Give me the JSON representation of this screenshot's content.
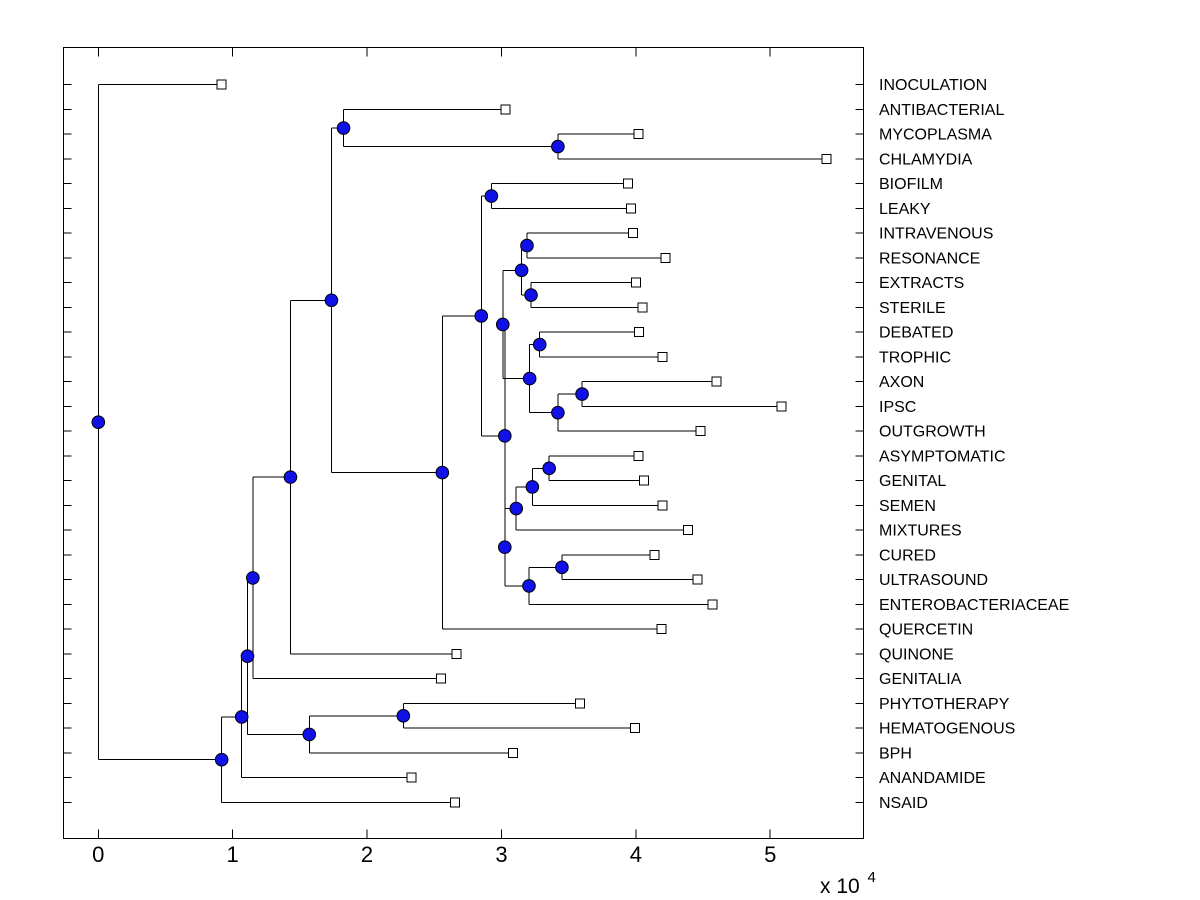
{
  "style": {
    "background": "#ffffff",
    "line_color": "#000000",
    "text_color": "#000000",
    "node_marker_color": "#1010e8",
    "node_marker_edge": "#000000",
    "leaf_marker_fill": "#ffffff",
    "leaf_marker_edge": "#000000"
  },
  "chart_data": {
    "type": "dendrogram",
    "title": "",
    "xlabel": "",
    "ylabel": "",
    "orientation": "left-to-right",
    "grid": false,
    "legend": false,
    "n_leaves": 30,
    "x_axis": {
      "ticks": [
        0,
        1,
        2,
        3,
        4,
        5
      ],
      "tick_labels": [
        "0",
        "1",
        "2",
        "3",
        "4",
        "5"
      ],
      "multiplier_base": "x 10",
      "multiplier_exponent": "4",
      "xlim": [
        0,
        56900
      ],
      "units_note": "branch distance from root, shown in units of 1e4"
    },
    "leaf_labels_in_order": [
      "INOCULATION",
      "ANTIBACTERIAL",
      "MYCOPLASMA",
      "CHLAMYDIA",
      "BIOFILM",
      "LEAKY",
      "INTRAVENOUS",
      "RESONANCE",
      "EXTRACTS",
      "STERILE",
      "DEBATED",
      "TROPHIC",
      "AXON",
      "IPSC",
      "OUTGROWTH",
      "ASYMPTOMATIC",
      "GENITAL",
      "SEMEN",
      "MIXTURES",
      "CURED",
      "ULTRASOUND",
      "ENTEROBACTERIACEAE",
      "QUERCETIN",
      "QUINONE",
      "GENITALIA",
      "PHYTOTHERAPY",
      "HEMATOGENOUS",
      "BPH",
      "ANANDAMIDE",
      "NSAID"
    ],
    "tree": {
      "id": "root",
      "x": 0,
      "children": [
        {
          "id": "leaf-inoculation",
          "label": "INOCULATION",
          "x": 9150
        },
        {
          "id": "n-222",
          "x": 9180,
          "children": [
            {
              "id": "n-242",
              "x": 10670,
              "children": [
                {
                  "id": "n-247",
                  "x": 11100,
                  "children": [
                    {
                      "id": "n-252",
                      "x": 11500,
                      "children": [
                        {
                          "id": "n-289",
                          "x": 14300,
                          "children": [
                            {
                              "id": "n-top",
                              "x": 17350,
                              "children": [
                                {
                                  "id": "n-a",
                                  "x": 18250,
                                  "children": [
                                    {
                                      "id": "leaf-antibacterial",
                                      "label": "ANTIBACTERIAL",
                                      "x": 30300
                                    },
                                    {
                                      "id": "n-b",
                                      "x": 34200,
                                      "children": [
                                        {
                                          "id": "leaf-mycoplasma",
                                          "label": "MYCOPLASMA",
                                          "x": 40200
                                        },
                                        {
                                          "id": "leaf-chlamydia",
                                          "label": "CHLAMYDIA",
                                          "x": 54200
                                        }
                                      ]
                                    }
                                  ]
                                },
                                {
                                  "id": "n-bq",
                                  "x": 25600,
                                  "children": [
                                    {
                                      "id": "n-x",
                                      "x": 28500,
                                      "children": [
                                        {
                                          "id": "n-bl",
                                          "x": 29250,
                                          "children": [
                                            {
                                              "id": "leaf-biofilm",
                                              "label": "BIOFILM",
                                              "x": 39400
                                            },
                                            {
                                              "id": "leaf-leaky",
                                              "label": "LEAKY",
                                              "x": 39650
                                            }
                                          ]
                                        },
                                        {
                                          "id": "n-y",
                                          "x": 30250,
                                          "children": [
                                            {
                                              "id": "n-mid",
                                              "x": 30100,
                                              "children": [
                                                {
                                                  "id": "n-ires",
                                                  "x": 31500,
                                                  "children": [
                                                    {
                                                      "id": "n-ir",
                                                      "x": 31900,
                                                      "children": [
                                                        {
                                                          "id": "leaf-intravenous",
                                                          "label": "INTRAVENOUS",
                                                          "x": 39800
                                                        },
                                                        {
                                                          "id": "leaf-resonance",
                                                          "label": "RESONANCE",
                                                          "x": 42200
                                                        }
                                                      ]
                                                    },
                                                    {
                                                      "id": "n-es",
                                                      "x": 32200,
                                                      "children": [
                                                        {
                                                          "id": "leaf-extracts",
                                                          "label": "EXTRACTS",
                                                          "x": 40000
                                                        },
                                                        {
                                                          "id": "leaf-sterile",
                                                          "label": "STERILE",
                                                          "x": 40500
                                                        }
                                                      ]
                                                    }
                                                  ]
                                                },
                                                {
                                                  "id": "n-dtaio",
                                                  "x": 32100,
                                                  "children": [
                                                    {
                                                      "id": "n-dt",
                                                      "x": 32850,
                                                      "children": [
                                                        {
                                                          "id": "leaf-debated",
                                                          "label": "DEBATED",
                                                          "x": 40250
                                                        },
                                                        {
                                                          "id": "leaf-trophic",
                                                          "label": "TROPHIC",
                                                          "x": 42000
                                                        }
                                                      ]
                                                    },
                                                    {
                                                      "id": "n-aio",
                                                      "x": 34200,
                                                      "children": [
                                                        {
                                                          "id": "n-ai",
                                                          "x": 36000,
                                                          "children": [
                                                            {
                                                              "id": "leaf-axon",
                                                              "label": "AXON",
                                                              "x": 46000
                                                            },
                                                            {
                                                              "id": "leaf-ipsc",
                                                              "label": "IPSC",
                                                              "x": 50850
                                                            }
                                                          ]
                                                        },
                                                        {
                                                          "id": "leaf-outgrowth",
                                                          "label": "OUTGROWTH",
                                                          "x": 44800
                                                        }
                                                      ]
                                                    }
                                                  ]
                                                }
                                              ]
                                            },
                                            {
                                              "id": "n-z",
                                              "x": 30250,
                                              "children": [
                                                {
                                                  "id": "n-asm",
                                                  "x": 31100,
                                                  "children": [
                                                    {
                                                      "id": "n-ags",
                                                      "x": 32300,
                                                      "children": [
                                                        {
                                                          "id": "n-ag",
                                                          "x": 33550,
                                                          "children": [
                                                            {
                                                              "id": "leaf-asymptomatic",
                                                              "label": "ASYMPTOMATIC",
                                                              "x": 40200
                                                            },
                                                            {
                                                              "id": "leaf-genital",
                                                              "label": "GENITAL",
                                                              "x": 40600
                                                            }
                                                          ]
                                                        },
                                                        {
                                                          "id": "leaf-semen",
                                                          "label": "SEMEN",
                                                          "x": 42000
                                                        }
                                                      ]
                                                    },
                                                    {
                                                      "id": "leaf-mixtures",
                                                      "label": "MIXTURES",
                                                      "x": 43900
                                                    }
                                                  ]
                                                },
                                                {
                                                  "id": "n-cue",
                                                  "x": 32050,
                                                  "children": [
                                                    {
                                                      "id": "n-cu",
                                                      "x": 34500,
                                                      "children": [
                                                        {
                                                          "id": "leaf-cured",
                                                          "label": "CURED",
                                                          "x": 41400
                                                        },
                                                        {
                                                          "id": "leaf-ultrasound",
                                                          "label": "ULTRASOUND",
                                                          "x": 44600
                                                        }
                                                      ]
                                                    },
                                                    {
                                                      "id": "leaf-enterobacteriaceae",
                                                      "label": "ENTEROBACTERIACEAE",
                                                      "x": 45700
                                                    }
                                                  ]
                                                }
                                              ]
                                            }
                                          ]
                                        }
                                      ]
                                    },
                                    {
                                      "id": "leaf-quercetin",
                                      "label": "QUERCETIN",
                                      "x": 41900
                                    }
                                  ]
                                }
                              ]
                            },
                            {
                              "id": "leaf-quinone",
                              "label": "QUINONE",
                              "x": 26650
                            }
                          ]
                        },
                        {
                          "id": "leaf-genitalia",
                          "label": "GENITALIA",
                          "x": 25500
                        }
                      ]
                    },
                    {
                      "id": "n-ph",
                      "x": 15700,
                      "children": [
                        {
                          "id": "n-phhe",
                          "x": 22700,
                          "children": [
                            {
                              "id": "leaf-phytotherapy",
                              "label": "PHYTOTHERAPY",
                              "x": 35850
                            },
                            {
                              "id": "leaf-hematogenous",
                              "label": "HEMATOGENOUS",
                              "x": 39950
                            }
                          ]
                        },
                        {
                          "id": "leaf-bph",
                          "label": "BPH",
                          "x": 30850
                        }
                      ]
                    }
                  ]
                },
                {
                  "id": "leaf-anandamide",
                  "label": "ANANDAMIDE",
                  "x": 23300
                }
              ]
            },
            {
              "id": "leaf-nsaid",
              "label": "NSAID",
              "x": 26550
            }
          ]
        }
      ]
    }
  }
}
